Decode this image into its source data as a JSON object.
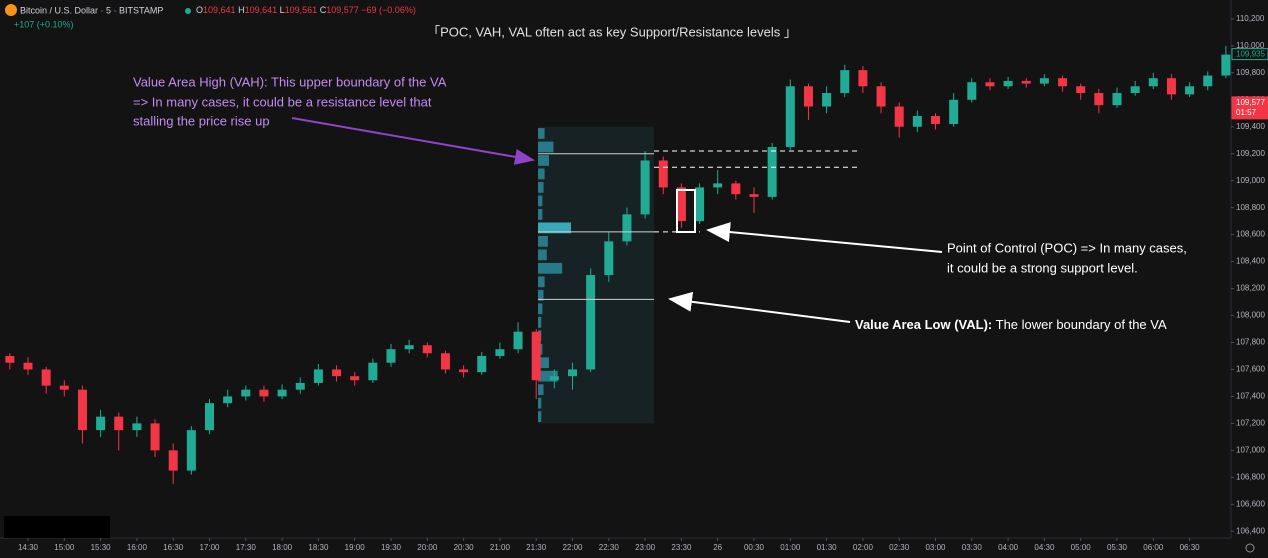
{
  "header": {
    "symbol": "Bitcoin / U.S. Dollar · 5 · BITSTAMP",
    "ohlc": [
      {
        "key": "O",
        "value": "109,641"
      },
      {
        "key": "H",
        "value": "109,641"
      },
      {
        "key": "L",
        "value": "109,561"
      },
      {
        "key": "C",
        "value": "109,577"
      }
    ],
    "change": "−69 (−0.06%)",
    "change2": "+107 (+0.10%)"
  },
  "chart_data": {
    "type": "candlestick",
    "title": "「POC, VAH, VAL often act as key Support/Resistance levels 」",
    "x": [
      "14:15",
      "14:30",
      "14:45",
      "15:00",
      "15:15",
      "15:30",
      "15:45",
      "16:00",
      "16:15",
      "16:30",
      "16:45",
      "17:00",
      "17:15",
      "17:30",
      "17:45",
      "18:00",
      "18:15",
      "18:30",
      "18:45",
      "19:00",
      "19:15",
      "19:30",
      "19:45",
      "20:00",
      "20:15",
      "20:30",
      "20:45",
      "21:00",
      "21:15",
      "21:30",
      "21:45",
      "22:00",
      "22:15",
      "22:30",
      "22:45",
      "23:00",
      "23:15",
      "23:30",
      "23:45",
      "00:00",
      "00:15",
      "00:30",
      "00:45",
      "01:00",
      "01:15",
      "01:30",
      "01:45",
      "02:00",
      "02:15",
      "02:30",
      "02:45",
      "03:00",
      "03:15",
      "03:30",
      "03:45",
      "04:00",
      "04:15",
      "04:30",
      "04:45",
      "05:00",
      "05:15",
      "05:30",
      "05:45",
      "06:00",
      "06:15",
      "06:30",
      "06:45",
      "07:00"
    ],
    "open": [
      107700,
      107650,
      107600,
      107480,
      107450,
      107150,
      107250,
      107150,
      107200,
      107000,
      106850,
      107150,
      107350,
      107400,
      107450,
      107400,
      107450,
      107500,
      107600,
      107550,
      107520,
      107650,
      107750,
      107780,
      107720,
      107600,
      107580,
      107700,
      107750,
      107880,
      107520,
      107550,
      107600,
      108300,
      108550,
      108750,
      109150,
      108950,
      108700,
      108950,
      108980,
      108900,
      108880,
      109250,
      109700,
      109550,
      109650,
      109820,
      109700,
      109550,
      109400,
      109480,
      109420,
      109600,
      109730,
      109700,
      109740,
      109720,
      109760,
      109700,
      109650,
      109560,
      109650,
      109700,
      109760,
      109640,
      109700,
      109780
    ],
    "high": [
      107720,
      107690,
      107620,
      107520,
      107480,
      107300,
      107280,
      107250,
      107230,
      107050,
      107180,
      107380,
      107450,
      107480,
      107480,
      107490,
      107540,
      107640,
      107630,
      107580,
      107680,
      107790,
      107820,
      107800,
      107740,
      107630,
      107730,
      107800,
      107950,
      107900,
      107600,
      107650,
      108350,
      108620,
      108800,
      109220,
      109180,
      108980,
      108980,
      109080,
      109000,
      108950,
      109280,
      109750,
      109720,
      109700,
      109860,
      109850,
      109730,
      109580,
      109520,
      109500,
      109650,
      109760,
      109760,
      109770,
      109760,
      109790,
      109780,
      109720,
      109680,
      109690,
      109740,
      109800,
      109790,
      109730,
      109810,
      110000
    ],
    "low": [
      107600,
      107560,
      107420,
      107400,
      107050,
      107100,
      107000,
      107100,
      106950,
      106750,
      106820,
      107120,
      107320,
      107370,
      107360,
      107380,
      107420,
      107480,
      107510,
      107480,
      107500,
      107620,
      107720,
      107690,
      107570,
      107540,
      107560,
      107680,
      107720,
      107380,
      107460,
      107450,
      107580,
      108250,
      108520,
      108720,
      108900,
      108650,
      108680,
      108900,
      108860,
      108760,
      108860,
      109230,
      109450,
      109500,
      109620,
      109650,
      109500,
      109320,
      109360,
      109380,
      109400,
      109580,
      109670,
      109680,
      109690,
      109700,
      109660,
      109600,
      109500,
      109540,
      109630,
      109680,
      109600,
      109620,
      109670,
      109760
    ],
    "close": [
      107650,
      107600,
      107480,
      107450,
      107150,
      107250,
      107150,
      107200,
      107000,
      106850,
      107150,
      107350,
      107400,
      107450,
      107400,
      107450,
      107500,
      107600,
      107550,
      107520,
      107650,
      107750,
      107780,
      107720,
      107600,
      107580,
      107700,
      107750,
      107880,
      107520,
      107550,
      107600,
      108300,
      108550,
      108750,
      109150,
      108950,
      108700,
      108950,
      108980,
      108900,
      108880,
      109250,
      109700,
      109550,
      109650,
      109820,
      109700,
      109550,
      109400,
      109480,
      109420,
      109600,
      109730,
      109700,
      109740,
      109720,
      109760,
      109700,
      109650,
      109560,
      109650,
      109700,
      109760,
      109640,
      109700,
      109780,
      109935
    ],
    "up_color": "#22ab94",
    "down_color": "#f23645",
    "ylim": [
      106350,
      110340
    ],
    "yticks": [
      {
        "value": 106400,
        "label": "106,400"
      },
      {
        "value": 106600,
        "label": "106,600"
      },
      {
        "value": 106800,
        "label": "106,800"
      },
      {
        "value": 107000,
        "label": "107,000"
      },
      {
        "value": 107200,
        "label": "107,200"
      },
      {
        "value": 107400,
        "label": "107,400"
      },
      {
        "value": 107600,
        "label": "107,600"
      },
      {
        "value": 107800,
        "label": "107,800"
      },
      {
        "value": 108000,
        "label": "108,000"
      },
      {
        "value": 108200,
        "label": "108,200"
      },
      {
        "value": 108400,
        "label": "108,400"
      },
      {
        "value": 108600,
        "label": "108,600"
      },
      {
        "value": 108800,
        "label": "108,800"
      },
      {
        "value": 109000,
        "label": "109,000"
      },
      {
        "value": 109200,
        "label": "109,200"
      },
      {
        "value": 109400,
        "label": "109,400"
      },
      {
        "value": 109600,
        "label": "109,600"
      },
      {
        "value": 109800,
        "label": "109,800"
      },
      {
        "value": 110000,
        "label": "110,000"
      },
      {
        "value": 110200,
        "label": "110,200"
      }
    ],
    "xticks": [
      {
        "value": 1,
        "label": "14:30"
      },
      {
        "value": 3,
        "label": "15:00"
      },
      {
        "value": 5,
        "label": "15:30"
      },
      {
        "value": 7,
        "label": "16:00"
      },
      {
        "value": 9,
        "label": "16:30"
      },
      {
        "value": 11,
        "label": "17:00"
      },
      {
        "value": 13,
        "label": "17:30"
      },
      {
        "value": 15,
        "label": "18:00"
      },
      {
        "value": 17,
        "label": "18:30"
      },
      {
        "value": 19,
        "label": "19:00"
      },
      {
        "value": 21,
        "label": "19:30"
      },
      {
        "value": 23,
        "label": "20:00"
      },
      {
        "value": 25,
        "label": "20:30"
      },
      {
        "value": 27,
        "label": "21:00"
      },
      {
        "value": 29,
        "label": "21:30"
      },
      {
        "value": 31,
        "label": "22:00"
      },
      {
        "value": 33,
        "label": "22:30"
      },
      {
        "value": 35,
        "label": "23:00"
      },
      {
        "value": 37,
        "label": "23:30"
      },
      {
        "value": 39,
        "label": "26"
      },
      {
        "value": 41,
        "label": "00:30"
      },
      {
        "value": 43,
        "label": "01:00"
      },
      {
        "value": 45,
        "label": "01:30"
      },
      {
        "value": 47,
        "label": "02:00"
      },
      {
        "value": 49,
        "label": "02:30"
      },
      {
        "value": 51,
        "label": "03:00"
      },
      {
        "value": 53,
        "label": "03:30"
      },
      {
        "value": 55,
        "label": "04:00"
      },
      {
        "value": 57,
        "label": "04:30"
      },
      {
        "value": 59,
        "label": "05:00"
      },
      {
        "value": 61,
        "label": "05:30"
      },
      {
        "value": 63,
        "label": "06:00"
      },
      {
        "value": 65,
        "label": "06:30"
      }
    ],
    "grid": false,
    "value_area": {
      "high": 109200,
      "poc": 108620,
      "low": 108120
    },
    "dashed_levels": [
      109220,
      109100
    ],
    "volume_profile": {
      "color": "#2b8a9a",
      "poc_color": "#3fc1d4",
      "prices": [
        109350,
        109250,
        109150,
        109050,
        108950,
        108850,
        108750,
        108650,
        108550,
        108450,
        108350,
        108250,
        108150,
        108050,
        107950,
        107850,
        107750,
        107650,
        107550,
        107450,
        107350,
        107250
      ],
      "values": [
        6,
        14,
        10,
        6,
        5,
        4,
        4,
        30,
        9,
        8,
        22,
        6,
        5,
        4,
        3,
        3,
        4,
        10,
        18,
        5,
        3,
        3
      ]
    },
    "price_tags": [
      {
        "value": 109935,
        "label": "109,935",
        "color": "#22ab94"
      },
      {
        "value": 109577,
        "label": "109,577",
        "sub": "01:57",
        "color": "#f23645"
      }
    ],
    "annotations": {
      "vah": [
        "Value Area High (VAH): This upper boundary of the VA",
        "=> In many cases, it could be a resistance level that",
        "stalling the price rise up"
      ],
      "poc": [
        "Point of Control (POC) => In many cases,",
        "it could be a strong support level."
      ],
      "val_bold": "Value Area Low (VAL):",
      "val_text": " The lower boundary of the VA"
    }
  }
}
